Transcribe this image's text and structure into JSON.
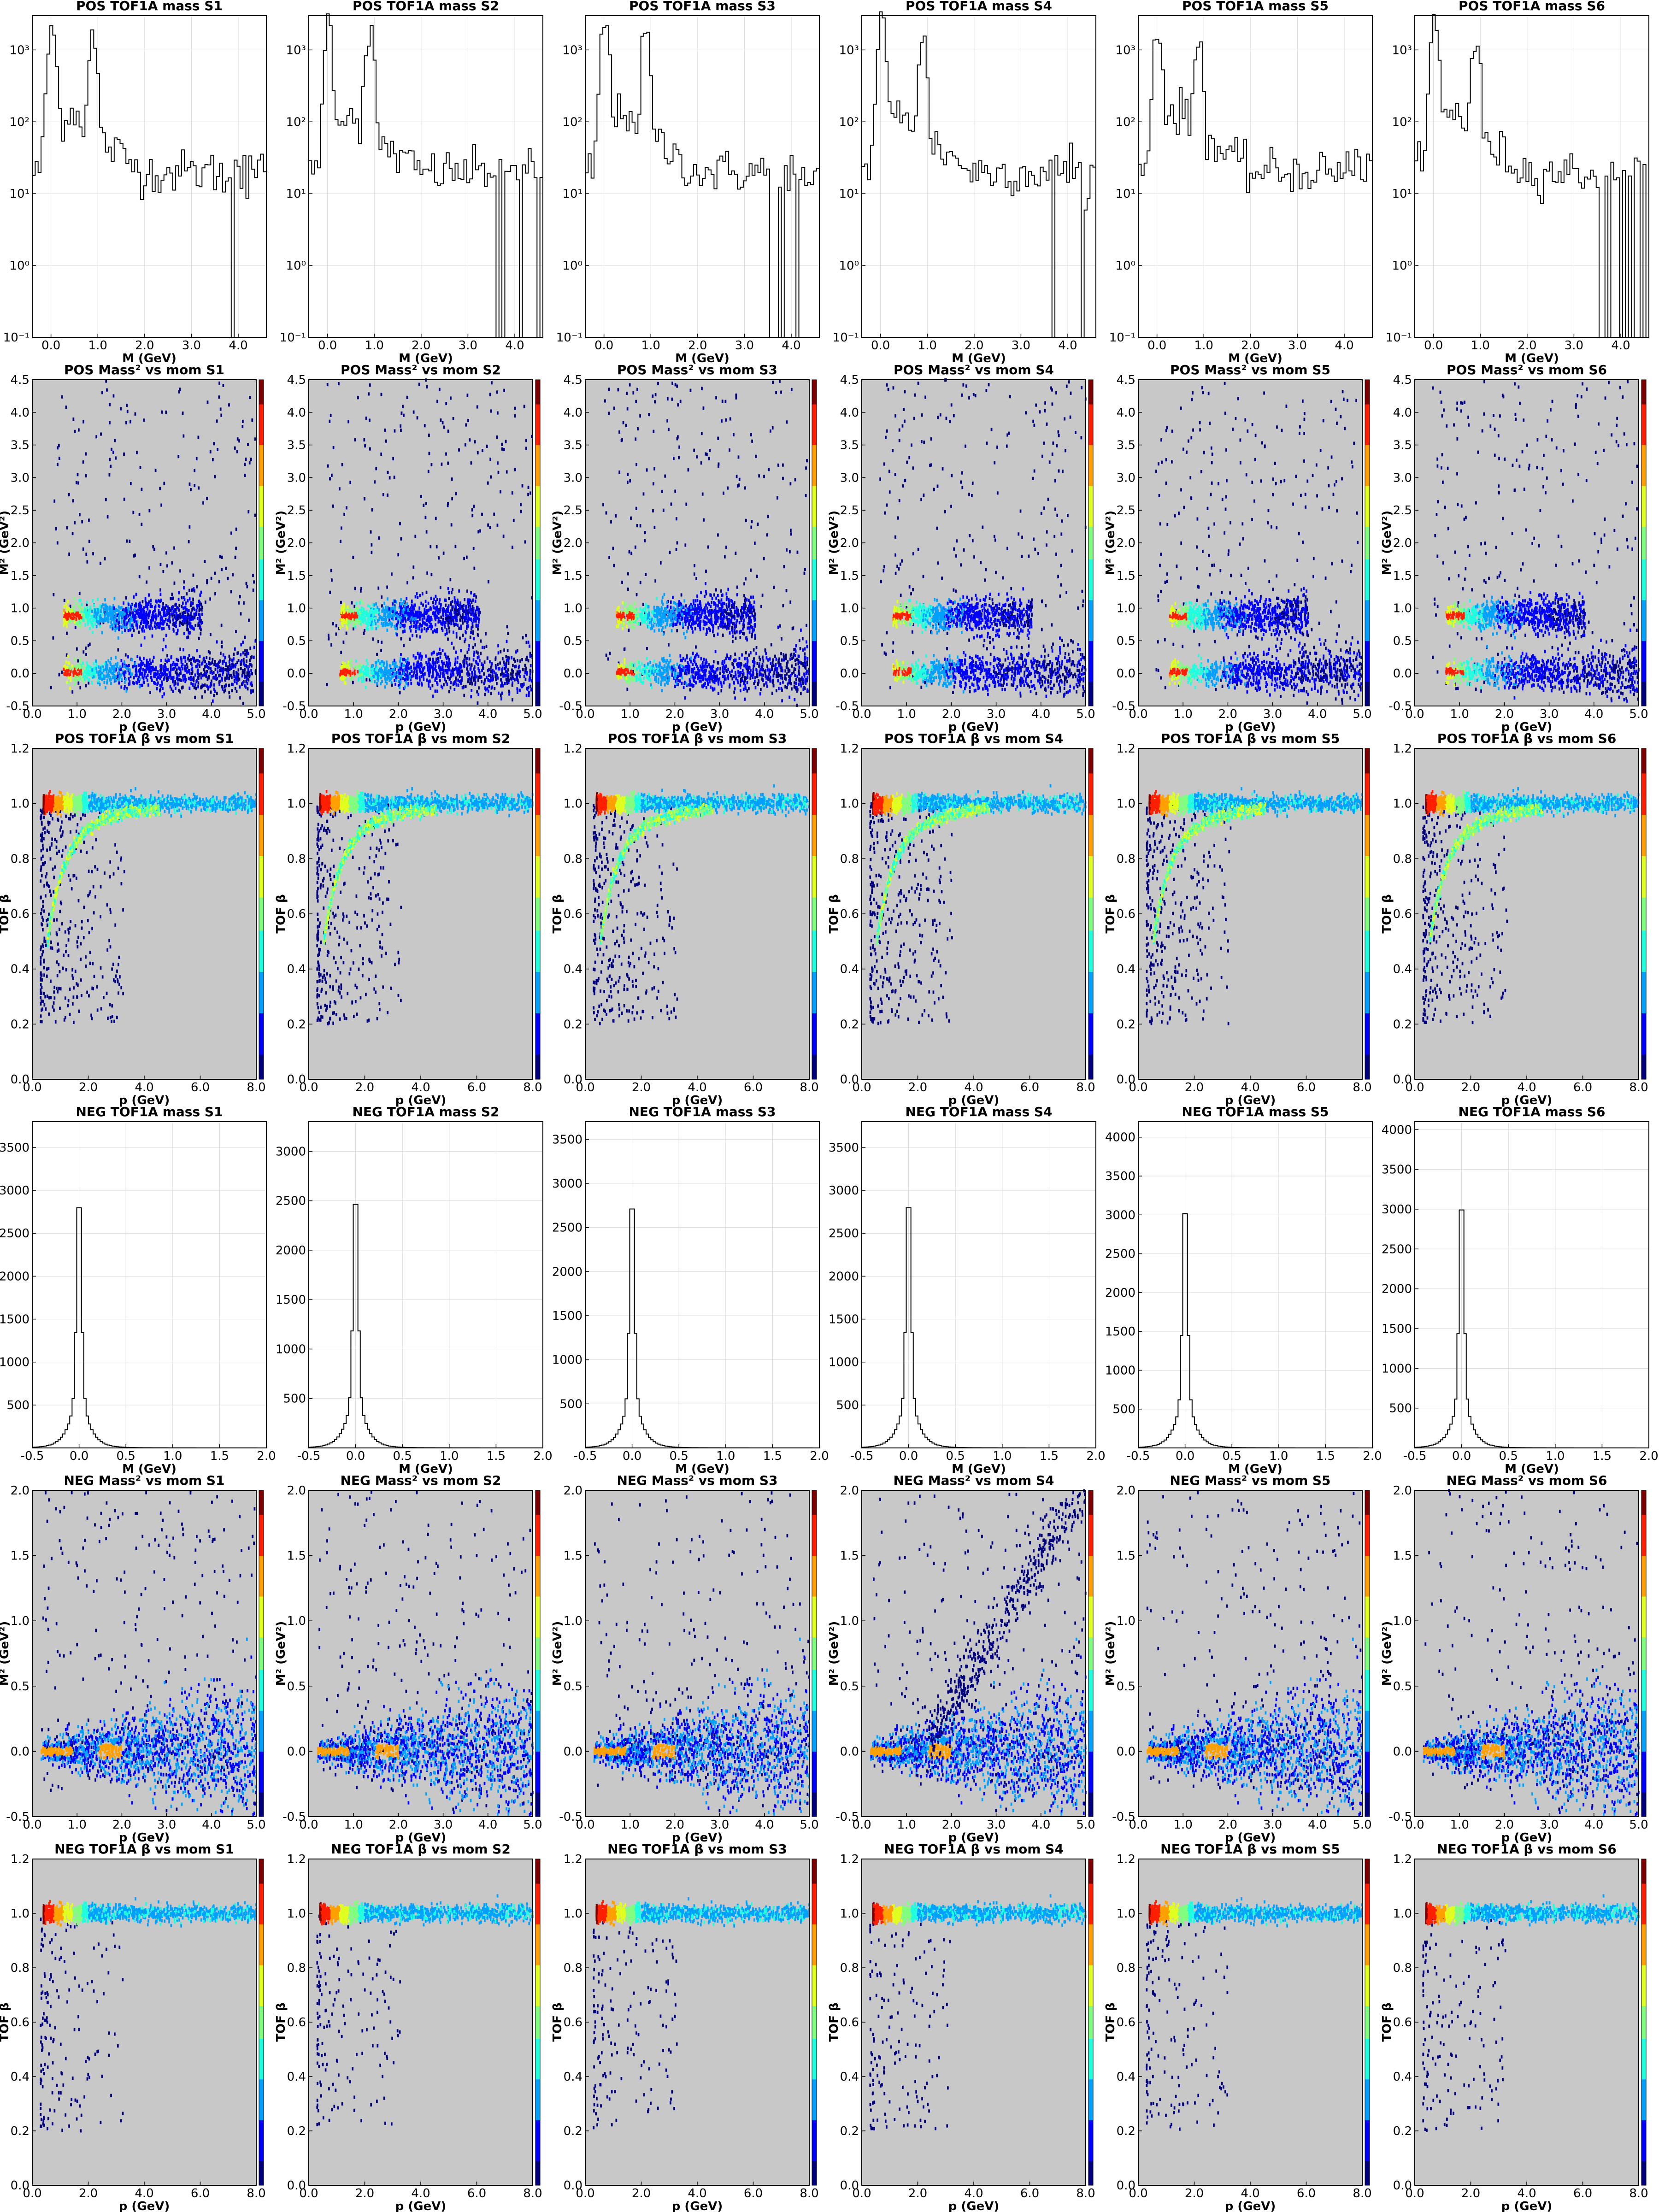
{
  "figure": {
    "columns": [
      "S1",
      "S2",
      "S3",
      "S4",
      "S5",
      "S6"
    ]
  },
  "colors": {
    "plot_background": "#c8c8c8",
    "hist_line": "#000000",
    "grid": "#d9d9d9",
    "cmap": [
      "#00007f",
      "#0000ff",
      "#00a0ff",
      "#1fffe0",
      "#80ff7f",
      "#e0ff1f",
      "#ffa000",
      "#ff1f00",
      "#7f0000"
    ]
  },
  "chart_data": [
    {
      "row": "pos_mass",
      "type": "histogram-step",
      "titles": [
        "POS TOF1A mass S1",
        "POS TOF1A mass S2",
        "POS TOF1A mass S3",
        "POS TOF1A mass S4",
        "POS TOF1A mass S5",
        "POS TOF1A mass S6"
      ],
      "xlabel": "M (GeV)",
      "ylabel": "",
      "yscale": "log",
      "xlim": [
        -0.4,
        4.6
      ],
      "ylim": [
        0.1,
        3000
      ],
      "xticks": [
        0.0,
        1.0,
        2.0,
        3.0,
        4.0
      ],
      "xtick_labels": [
        "0.0",
        "1.0",
        "2.0",
        "3.0",
        "4.0"
      ],
      "ytick_labels": [
        "10⁻¹",
        "10⁰",
        "10¹",
        "10²",
        "10³"
      ],
      "ytick_values": [
        0.1,
        1,
        10,
        100,
        1000
      ],
      "grid": true,
      "series": [
        {
          "name": "S1",
          "peak1": 2000,
          "peak2": 1400
        },
        {
          "name": "S2",
          "peak1": 2200,
          "peak2": 1600
        },
        {
          "name": "S3",
          "peak1": 2400,
          "peak2": 1500
        },
        {
          "name": "S4",
          "peak1": 2300,
          "peak2": 1300
        },
        {
          "name": "S5",
          "peak1": 2300,
          "peak2": 1400
        },
        {
          "name": "S6",
          "peak1": 2300,
          "peak2": 1300
        }
      ]
    },
    {
      "row": "pos_m2_vs_p",
      "type": "heatmap",
      "titles": [
        "POS Mass² vs mom S1",
        "POS Mass² vs mom S2",
        "POS Mass² vs mom S3",
        "POS Mass² vs mom S4",
        "POS Mass² vs mom S5",
        "POS Mass² vs mom S6"
      ],
      "xlabel": "p (GeV)",
      "ylabel": "M² (GeV²)",
      "xlim": [
        0.0,
        5.0
      ],
      "ylim": [
        -0.5,
        4.5
      ],
      "xticks": [
        0.0,
        1.0,
        2.0,
        3.0,
        4.0,
        5.0
      ],
      "xtick_labels": [
        "0.0",
        "1.0",
        "2.0",
        "3.0",
        "4.0",
        "5.0"
      ],
      "yticks": [
        -0.5,
        0.0,
        0.5,
        1.0,
        1.5,
        2.0,
        2.5,
        3.0,
        3.5,
        4.0,
        4.5
      ],
      "ytick_labels": [
        "-0.5",
        "0.0",
        "0.5",
        "1.0",
        "1.5",
        "2.0",
        "2.5",
        "3.0",
        "3.5",
        "4.0",
        "4.5"
      ],
      "bands": [
        {
          "m2": 0.02,
          "p_range": [
            0.7,
            5.0
          ]
        },
        {
          "m2": 0.88,
          "p_range": [
            0.7,
            3.8
          ]
        }
      ]
    },
    {
      "row": "pos_beta_vs_p",
      "type": "heatmap",
      "titles": [
        "POS TOF1A β vs mom S1",
        "POS TOF1A β vs mom S2",
        "POS TOF1A β vs mom S3",
        "POS TOF1A β vs mom S4",
        "POS TOF1A β vs mom S5",
        "POS TOF1A β vs mom S6"
      ],
      "xlabel": "p (GeV)",
      "ylabel": "TOF β",
      "xlim": [
        0.0,
        8.0
      ],
      "ylim": [
        0.0,
        1.2
      ],
      "xticks": [
        0.0,
        2.0,
        4.0,
        6.0,
        8.0
      ],
      "xtick_labels": [
        "0.0",
        "2.0",
        "4.0",
        "6.0",
        "8.0"
      ],
      "yticks": [
        0.0,
        0.2,
        0.4,
        0.6,
        0.8,
        1.0,
        1.2
      ],
      "ytick_labels": [
        "0.0",
        "0.2",
        "0.4",
        "0.6",
        "0.8",
        "1.0",
        "1.2"
      ],
      "bands": [
        {
          "beta": 1.0
        },
        {
          "proton_curve": true
        }
      ]
    },
    {
      "row": "neg_mass",
      "type": "histogram-step",
      "titles": [
        "NEG TOF1A mass S1",
        "NEG TOF1A mass S2",
        "NEG TOF1A mass S3",
        "NEG TOF1A mass S4",
        "NEG TOF1A mass S5",
        "NEG TOF1A mass S6"
      ],
      "xlabel": "M (GeV)",
      "ylabel": "",
      "xlim": [
        -0.5,
        2.0
      ],
      "xticks": [
        -0.5,
        0.0,
        0.5,
        1.0,
        1.5,
        2.0
      ],
      "xtick_labels": [
        "-0.5",
        "0.0",
        "0.5",
        "1.0",
        "1.5",
        "2.0"
      ],
      "grid": true,
      "series": [
        {
          "name": "S1",
          "peak": 3180,
          "ymax": 3800,
          "yticks": [
            500,
            1000,
            1500,
            2000,
            2500,
            3000,
            3500
          ]
        },
        {
          "name": "S2",
          "peak": 2800,
          "ymax": 3300,
          "yticks": [
            500,
            1000,
            1500,
            2000,
            2500,
            3000
          ]
        },
        {
          "name": "S3",
          "peak": 3080,
          "ymax": 3700,
          "yticks": [
            500,
            1000,
            1500,
            2000,
            2500,
            3000,
            3500
          ]
        },
        {
          "name": "S4",
          "peak": 3180,
          "ymax": 3800,
          "yticks": [
            500,
            1000,
            1500,
            2000,
            2500,
            3000,
            3500
          ]
        },
        {
          "name": "S5",
          "peak": 3430,
          "ymax": 4200,
          "yticks": [
            500,
            1000,
            1500,
            2000,
            2500,
            3000,
            3500,
            4000
          ]
        },
        {
          "name": "S6",
          "peak": 3400,
          "ymax": 4100,
          "yticks": [
            500,
            1000,
            1500,
            2000,
            2500,
            3000,
            3500,
            4000
          ]
        }
      ]
    },
    {
      "row": "neg_m2_vs_p",
      "type": "heatmap",
      "titles": [
        "NEG Mass² vs mom S1",
        "NEG Mass² vs mom S2",
        "NEG Mass² vs mom S3",
        "NEG Mass² vs mom S4",
        "NEG Mass² vs mom S5",
        "NEG Mass² vs mom S6"
      ],
      "xlabel": "p (GeV)",
      "ylabel": "M² (GeV²)",
      "xlim": [
        0.0,
        5.0
      ],
      "ylim": [
        -0.5,
        2.0
      ],
      "xticks": [
        0.0,
        1.0,
        2.0,
        3.0,
        4.0,
        5.0
      ],
      "xtick_labels": [
        "0.0",
        "1.0",
        "2.0",
        "3.0",
        "4.0",
        "5.0"
      ],
      "yticks": [
        -0.5,
        0.0,
        0.5,
        1.0,
        1.5,
        2.0
      ],
      "ytick_labels": [
        "-0.5",
        "0.0",
        "0.5",
        "1.0",
        "1.5",
        "2.0"
      ],
      "bands": [
        {
          "m2": 0.0,
          "spreading": true
        }
      ]
    },
    {
      "row": "neg_beta_vs_p",
      "type": "heatmap",
      "titles": [
        "NEG TOF1A β vs mom S1",
        "NEG TOF1A β vs mom S2",
        "NEG TOF1A β vs mom S3",
        "NEG TOF1A β vs mom S4",
        "NEG TOF1A β vs mom S5",
        "NEG TOF1A β vs mom S6"
      ],
      "xlabel": "p (GeV)",
      "ylabel": "TOF β",
      "xlim": [
        0.0,
        8.0
      ],
      "ylim": [
        0.0,
        1.2
      ],
      "xticks": [
        0.0,
        2.0,
        4.0,
        6.0,
        8.0
      ],
      "xtick_labels": [
        "0.0",
        "2.0",
        "4.0",
        "6.0",
        "8.0"
      ],
      "yticks": [
        0.0,
        0.2,
        0.4,
        0.6,
        0.8,
        1.0,
        1.2
      ],
      "ytick_labels": [
        "0.0",
        "0.2",
        "0.4",
        "0.6",
        "0.8",
        "1.0",
        "1.2"
      ],
      "bands": [
        {
          "beta": 1.0
        }
      ]
    }
  ]
}
